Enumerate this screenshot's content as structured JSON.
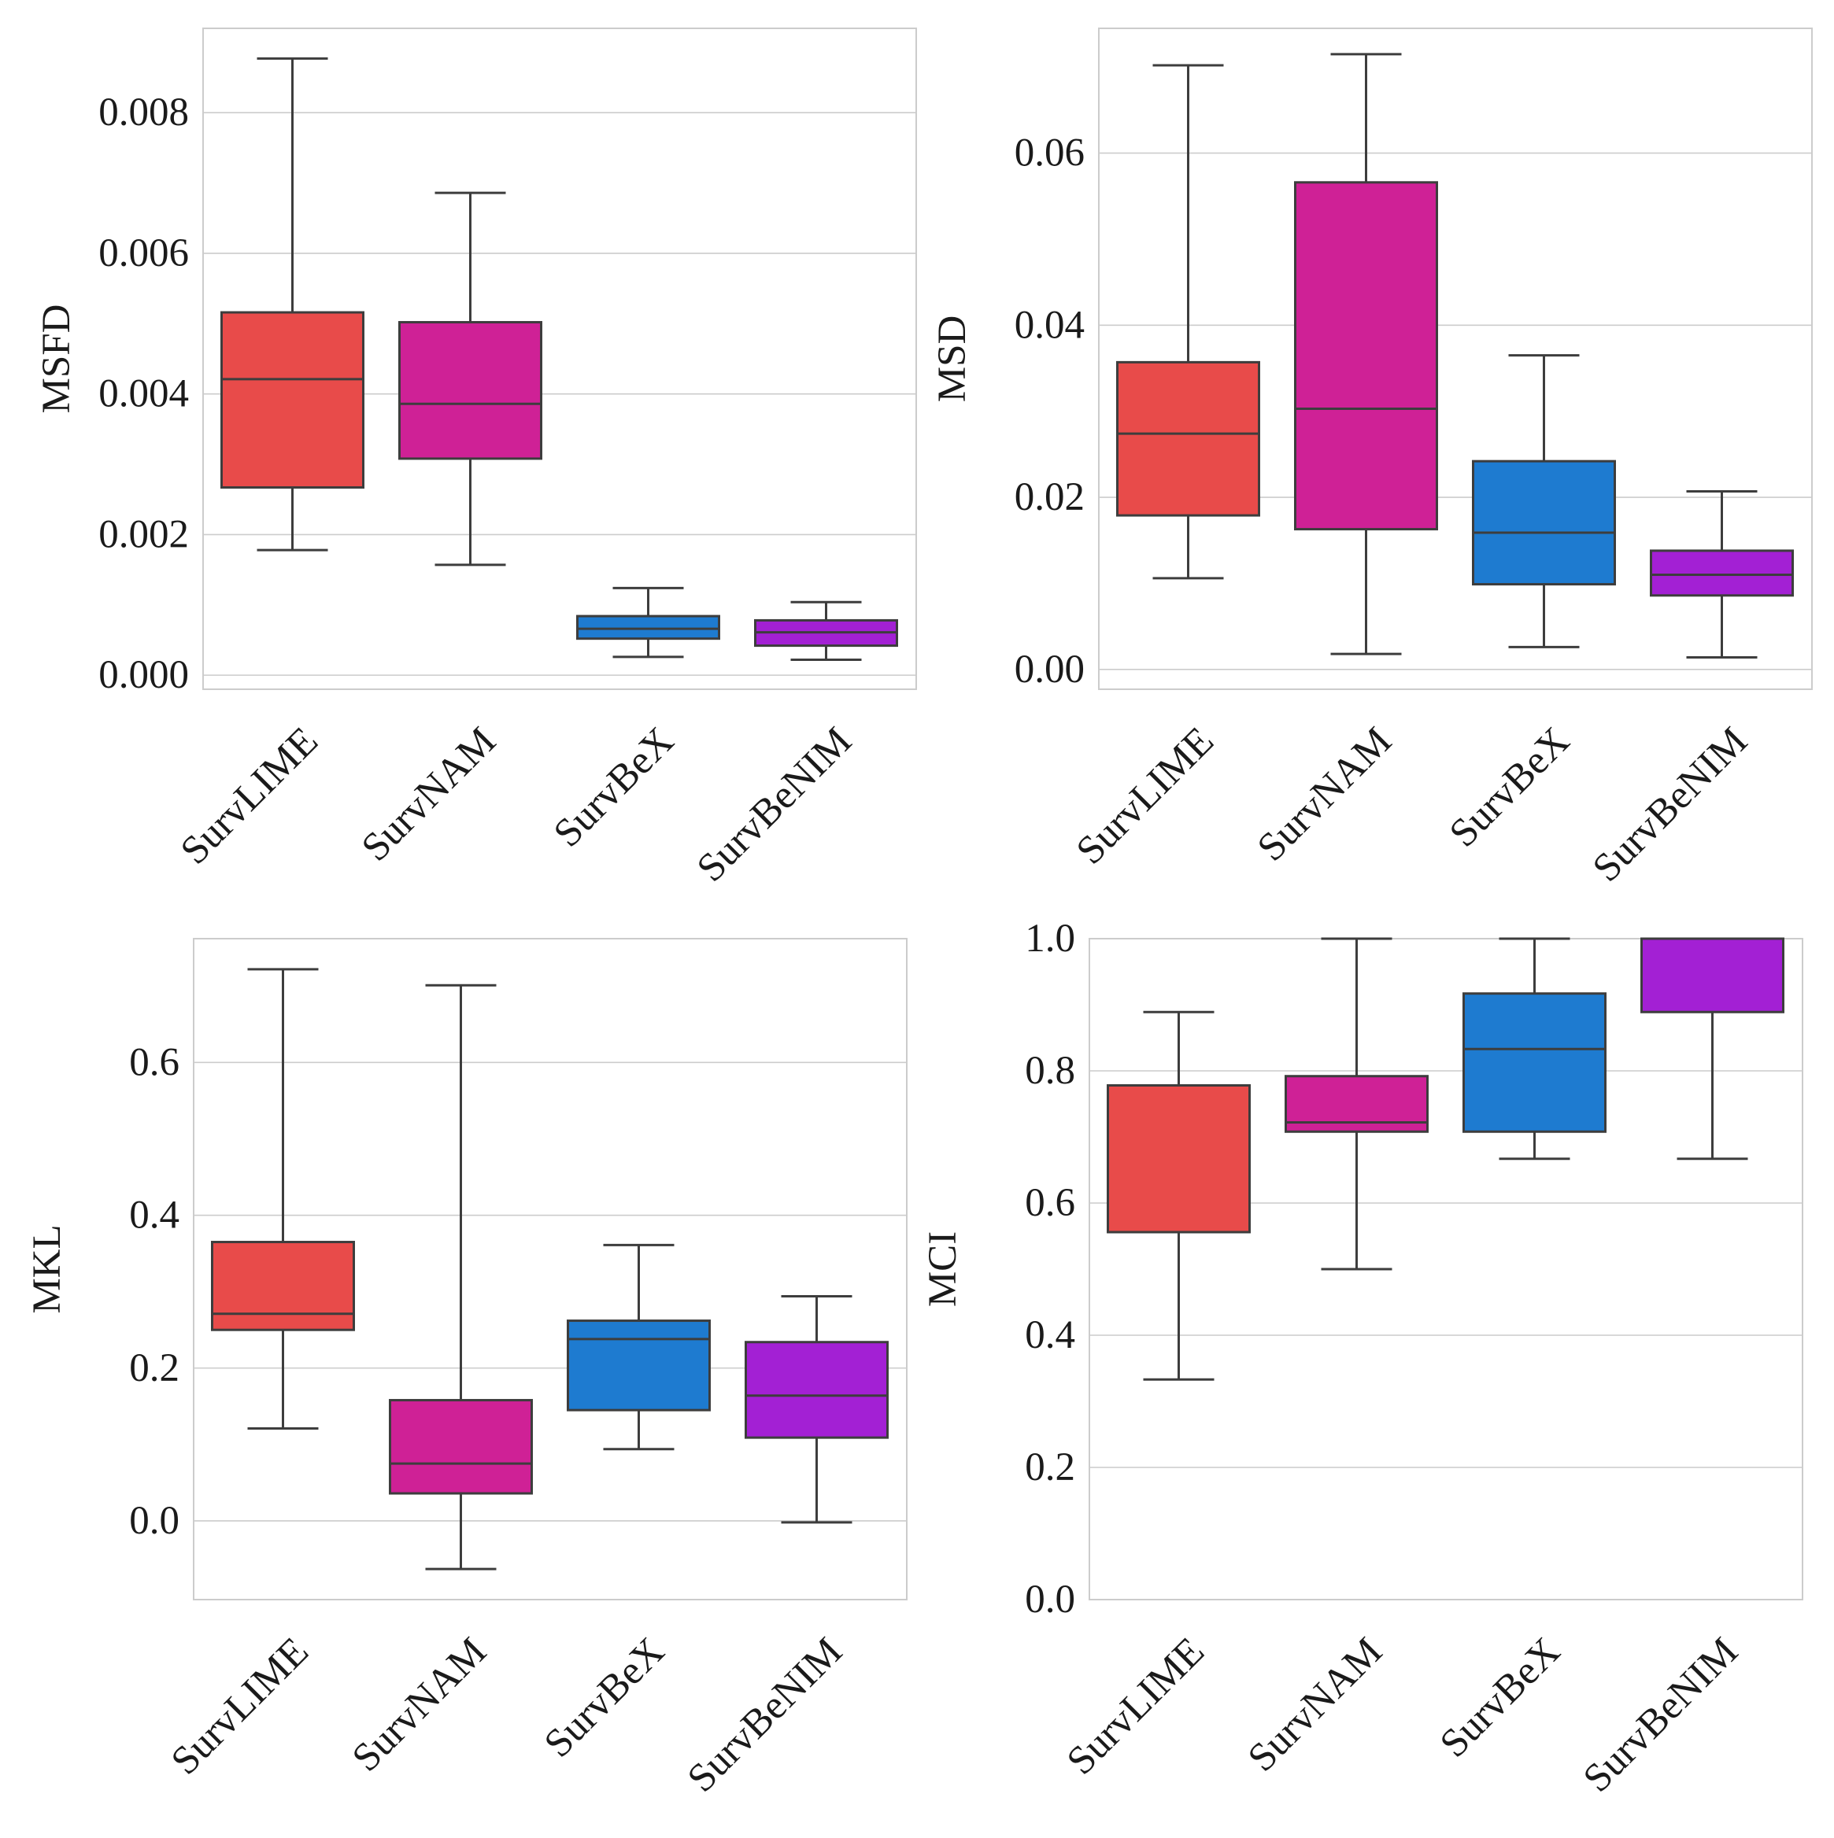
{
  "chart_data": [
    {
      "type": "box",
      "ylabel": "MSFD",
      "ylim": [
        -0.0002,
        0.0092
      ],
      "yticks": [
        0.0,
        0.002,
        0.004,
        0.006,
        0.008
      ],
      "ytick_labels": [
        "0.000",
        "0.002",
        "0.004",
        "0.006",
        "0.008"
      ],
      "grid": "horizontal",
      "categories": [
        "SurvLIME",
        "SurvNAM",
        "SurvBeX",
        "SurvBeNIM"
      ],
      "colors": [
        "#E84B4A",
        "#CF2196",
        "#1E7BD0",
        "#A320D4"
      ],
      "boxes": [
        {
          "whislo": 0.00178,
          "q1": 0.00267,
          "med": 0.00421,
          "q3": 0.00516,
          "whishi": 0.00877
        },
        {
          "whislo": 0.00157,
          "q1": 0.00308,
          "med": 0.00386,
          "q3": 0.00502,
          "whishi": 0.00686
        },
        {
          "whislo": 0.00026,
          "q1": 0.00052,
          "med": 0.00066,
          "q3": 0.00084,
          "whishi": 0.00124
        },
        {
          "whislo": 0.00022,
          "q1": 0.00042,
          "med": 0.00061,
          "q3": 0.00078,
          "whishi": 0.00104
        }
      ]
    },
    {
      "type": "box",
      "ylabel": "MSD",
      "ylim": [
        -0.0023,
        0.0745
      ],
      "yticks": [
        0.0,
        0.02,
        0.04,
        0.06
      ],
      "ytick_labels": [
        "0.00",
        "0.02",
        "0.04",
        "0.06"
      ],
      "grid": "horizontal",
      "categories": [
        "SurvLIME",
        "SurvNAM",
        "SurvBeX",
        "SurvBeNIM"
      ],
      "colors": [
        "#E84B4A",
        "#CF2196",
        "#1E7BD0",
        "#A320D4"
      ],
      "boxes": [
        {
          "whislo": 0.0106,
          "q1": 0.0179,
          "med": 0.0274,
          "q3": 0.0357,
          "whishi": 0.0702
        },
        {
          "whislo": 0.0018,
          "q1": 0.0163,
          "med": 0.0303,
          "q3": 0.0566,
          "whishi": 0.0715
        },
        {
          "whislo": 0.0026,
          "q1": 0.0099,
          "med": 0.0159,
          "q3": 0.0242,
          "whishi": 0.0365
        },
        {
          "whislo": 0.0014,
          "q1": 0.0086,
          "med": 0.011,
          "q3": 0.0138,
          "whishi": 0.0207
        }
      ]
    },
    {
      "type": "box",
      "ylabel": "MKL",
      "ylim": [
        -0.103,
        0.762
      ],
      "yticks": [
        0.0,
        0.2,
        0.4,
        0.6
      ],
      "ytick_labels": [
        "0.0",
        "0.2",
        "0.4",
        "0.6"
      ],
      "grid": "horizontal",
      "categories": [
        "SurvLIME",
        "SurvNAM",
        "SurvBeX",
        "SurvBeNIM"
      ],
      "colors": [
        "#E84B4A",
        "#CF2196",
        "#1E7BD0",
        "#A320D4"
      ],
      "boxes": [
        {
          "whislo": 0.121,
          "q1": 0.25,
          "med": 0.271,
          "q3": 0.365,
          "whishi": 0.722
        },
        {
          "whislo": -0.063,
          "q1": 0.036,
          "med": 0.075,
          "q3": 0.158,
          "whishi": 0.701
        },
        {
          "whislo": 0.094,
          "q1": 0.145,
          "med": 0.238,
          "q3": 0.262,
          "whishi": 0.361
        },
        {
          "whislo": -0.002,
          "q1": 0.109,
          "med": 0.164,
          "q3": 0.234,
          "whishi": 0.294
        }
      ]
    },
    {
      "type": "box",
      "ylabel": "MCI",
      "ylim": [
        0.0,
        1.0
      ],
      "yticks": [
        0.0,
        0.2,
        0.4,
        0.6,
        0.8,
        1.0
      ],
      "ytick_labels": [
        "0.0",
        "0.2",
        "0.4",
        "0.6",
        "0.8",
        "1.0"
      ],
      "grid": "horizontal",
      "categories": [
        "SurvLIME",
        "SurvNAM",
        "SurvBeX",
        "SurvBeNIM"
      ],
      "colors": [
        "#E84B4A",
        "#CF2196",
        "#1E7BD0",
        "#A320D4"
      ],
      "boxes": [
        {
          "whislo": 0.333,
          "q1": 0.556,
          "med": 0.556,
          "q3": 0.778,
          "whishi": 0.889
        },
        {
          "whislo": 0.5,
          "q1": 0.708,
          "med": 0.722,
          "q3": 0.792,
          "whishi": 1.0
        },
        {
          "whislo": 0.667,
          "q1": 0.708,
          "med": 0.833,
          "q3": 0.917,
          "whishi": 1.0
        },
        {
          "whislo": 0.667,
          "q1": 0.889,
          "med": 1.0,
          "q3": 1.0,
          "whishi": 1.0
        }
      ]
    }
  ]
}
